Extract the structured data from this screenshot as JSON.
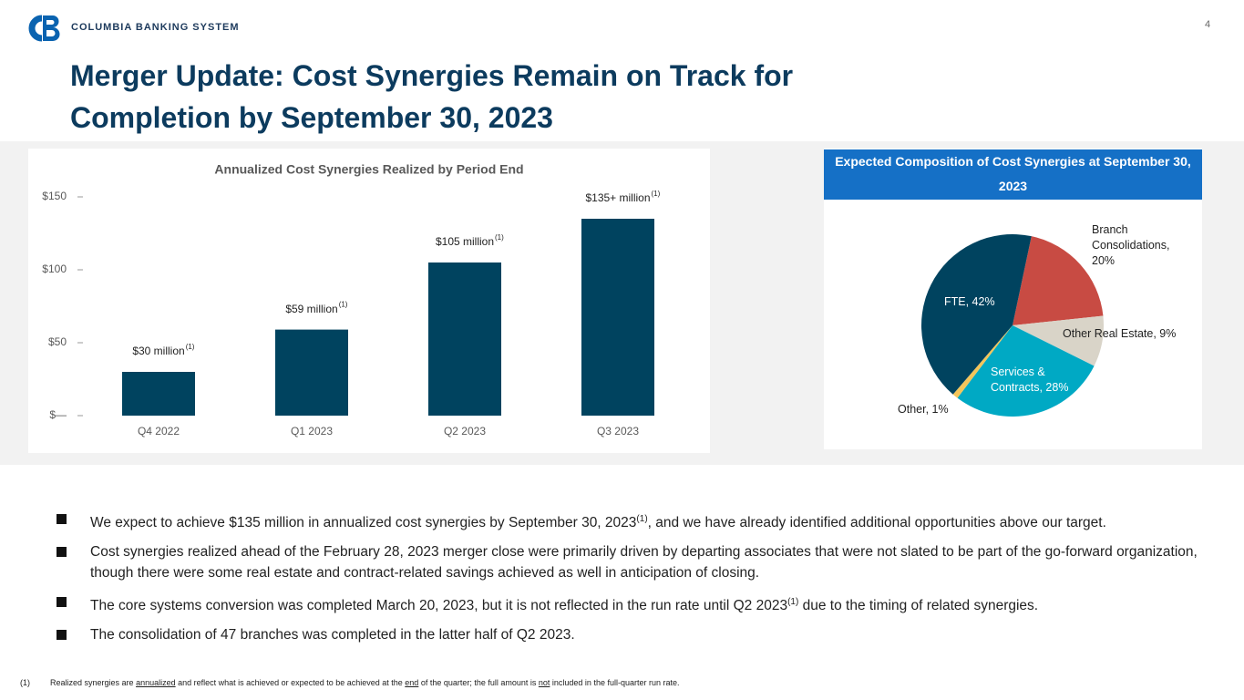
{
  "header": {
    "logo_text": "COLUMBIA BANKING SYSTEM",
    "page_number": "4",
    "title": "Merger Update: Cost Synergies Remain on Track for Completion by September 30, 2023"
  },
  "chart_data": [
    {
      "type": "bar",
      "title": "Annualized Cost Synergies Realized by Period End",
      "categories": [
        "Q4 2022",
        "Q1 2023",
        "Q2 2023",
        "Q3 2023"
      ],
      "values": [
        30,
        59,
        105,
        135
      ],
      "value_labels": [
        "$30 million",
        "$59 million",
        "$105 million",
        "$135+ million"
      ],
      "value_label_notes": [
        "(1)",
        "(1)",
        "(1)",
        "(1)"
      ],
      "color": "#00435f",
      "ylim": [
        0,
        150
      ],
      "yticks": [
        {
          "value": 0,
          "label": "$—"
        },
        {
          "value": 50,
          "label": "$50"
        },
        {
          "value": 100,
          "label": "$100"
        },
        {
          "value": 150,
          "label": "$150"
        }
      ]
    },
    {
      "type": "pie",
      "title": "Expected Composition of Cost Synergies at September 30, 2023",
      "labels": [
        "Branch Consolidations, 20%",
        "Other Real Estate, 9%",
        "Services & Contracts, 28%",
        "Other, 1%",
        "FTE, 42%"
      ],
      "values": [
        20,
        9,
        28,
        1,
        42
      ],
      "colors": [
        "#c84b43",
        "#d9d4c8",
        "#00a9c4",
        "#f3c55a",
        "#00435f"
      ]
    }
  ],
  "bullets": [
    [
      "We expect to achieve $135 million in annualized cost synergies by September 30, 2023",
      "(1)",
      ", and we have already identified additional opportunities above our target."
    ],
    [
      "Cost synergies realized ahead of the February 28, 2023 merger close were primarily driven by departing associates that were not slated to be part of the go-forward organization, though there were some real estate and contract-related savings achieved as well in anticipation of closing."
    ],
    [
      "The core systems conversion was completed March 20, 2023, but it is not reflected in the run rate until Q2 2023",
      "(1)",
      " due to the timing of related synergies."
    ],
    [
      "The consolidation of 47 branches was completed in the latter half of Q2 2023."
    ]
  ],
  "footnote": {
    "marker": "(1)",
    "parts": [
      "Realized synergies are ",
      "annualized",
      " and reflect what is achieved or expected to be achieved at the ",
      "end",
      " of the quarter; the full amount is ",
      "not",
      " included in the full-quarter run rate."
    ]
  }
}
